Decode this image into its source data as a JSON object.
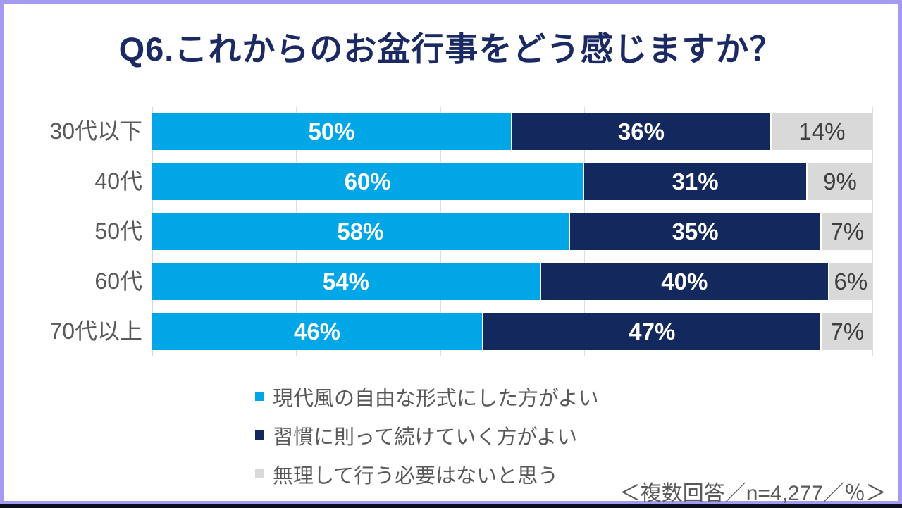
{
  "frame": {
    "border_color": "#a49bf0",
    "bottom_bar_color": "#0a0e1c"
  },
  "title": {
    "text": "Q6.これからのお盆行事をどう感じますか？",
    "color": "#1b2a63"
  },
  "chart_data": {
    "type": "bar",
    "orientation": "horizontal",
    "stacked": true,
    "categories": [
      "30代以下",
      "40代",
      "50代",
      "60代",
      "70代以上"
    ],
    "series": [
      {
        "name": "現代風の自由な形式にした方がよい",
        "color": "#00a6e6",
        "label_color": "#ffffff",
        "values": [
          50,
          60,
          58,
          54,
          46
        ]
      },
      {
        "name": "習慣に則って続けていく方がよい",
        "color": "#13295e",
        "label_color": "#ffffff",
        "values": [
          36,
          31,
          35,
          40,
          47
        ]
      },
      {
        "name": "無理して行う必要はないと思う",
        "color": "#d9d9d9",
        "label_color": "#3f3f3f",
        "values": [
          14,
          9,
          7,
          6,
          7
        ]
      }
    ],
    "value_suffix": "%",
    "xlim": [
      0,
      100
    ],
    "gridline_interval": 20,
    "grid": true,
    "legend_position": "bottom-left",
    "category_label_color": "#595959"
  },
  "footer": {
    "note": "＜複数回答／n=4,277／％＞"
  }
}
